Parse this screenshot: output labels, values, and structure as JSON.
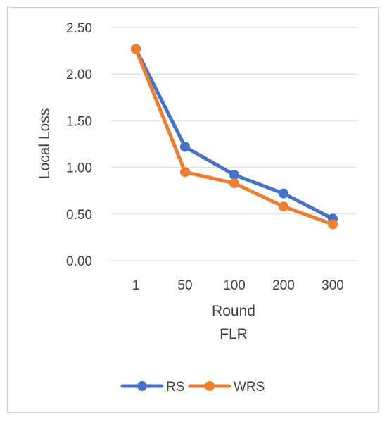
{
  "chart_data": {
    "type": "line",
    "categories": [
      "1",
      "50",
      "100",
      "200",
      "300"
    ],
    "series": [
      {
        "name": "RS",
        "values": [
          2.27,
          1.22,
          0.92,
          0.72,
          0.45
        ],
        "color": "#4472C4"
      },
      {
        "name": "WRS",
        "values": [
          2.27,
          0.95,
          0.83,
          0.58,
          0.39
        ],
        "color": "#ED7D31"
      }
    ],
    "yticks": [
      "0.00",
      "0.50",
      "1.00",
      "1.50",
      "2.00",
      "2.50"
    ],
    "ylim": [
      0,
      2.5
    ],
    "xlabel": "Round",
    "xlabel2": "FLR",
    "ylabel": "Local Loss",
    "grid": true,
    "legend_position": "bottom"
  }
}
